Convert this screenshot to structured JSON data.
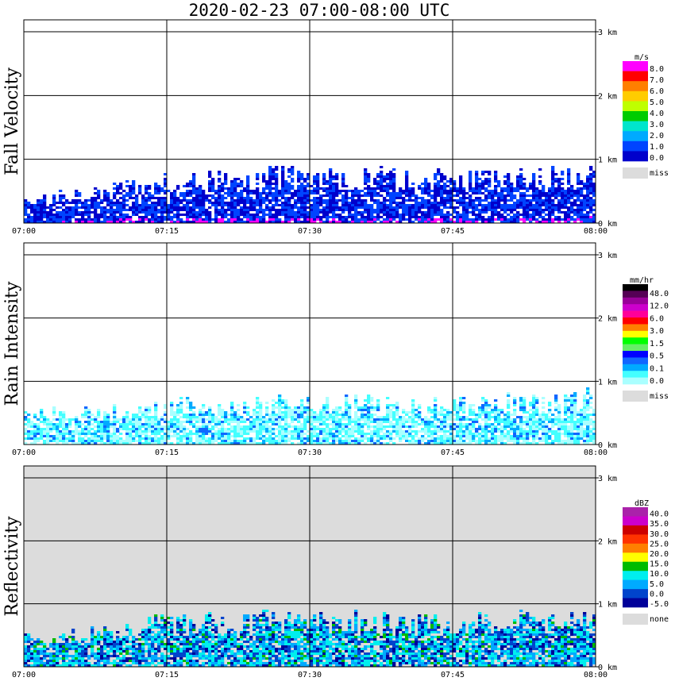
{
  "chart_data": [
    {
      "type": "heatmap",
      "title": "Fall Velocity",
      "units": "m/s",
      "x_ticks": [
        "07:00",
        "07:15",
        "07:30",
        "07:45",
        "08:00"
      ],
      "y_ticks": [
        "0 km",
        "1 km",
        "2 km",
        "3 km"
      ],
      "ylim_km": [
        0,
        3
      ],
      "xlim_min": [
        0,
        60
      ],
      "echo_top_km": [
        0.45,
        0.85,
        0.95,
        0.85,
        1.0
      ],
      "legend": {
        "title": "m/s",
        "labels": [
          "8.0",
          "7.0",
          "6.0",
          "5.0",
          "4.0",
          "3.0",
          "2.0",
          "1.0",
          "0.0"
        ],
        "colors": [
          "#ff00ff",
          "#ff0000",
          "#ff7f00",
          "#ffcc00",
          "#bfff00",
          "#00cc00",
          "#00e5cc",
          "#00aaff",
          "#0044ff",
          "#0000cc"
        ],
        "missing_label": "miss",
        "missing_color": "#dcdcdc"
      },
      "background": "#ffffff"
    },
    {
      "type": "heatmap",
      "title": "Rain Intensity",
      "units": "mm/hr",
      "x_ticks": [
        "07:00",
        "07:15",
        "07:30",
        "07:45",
        "08:00"
      ],
      "y_ticks": [
        "0 km",
        "1 km",
        "2 km",
        "3 km"
      ],
      "ylim_km": [
        0,
        3
      ],
      "xlim_min": [
        0,
        60
      ],
      "echo_top_km": [
        0.6,
        0.75,
        0.85,
        0.8,
        0.95
      ],
      "legend": {
        "title": "mm/hr",
        "labels": [
          "48.0",
          "12.0",
          "6.0",
          "3.0",
          "1.5",
          "0.5",
          "0.1",
          "0.0"
        ],
        "colors": [
          "#000000",
          "#550055",
          "#990099",
          "#cc00cc",
          "#ff0099",
          "#ff0000",
          "#ff7f00",
          "#ffff00",
          "#00ff00",
          "#66ee66",
          "#0000ff",
          "#1166ff",
          "#00aaff",
          "#44ffff",
          "#aaffff"
        ],
        "missing_label": "miss",
        "missing_color": "#dcdcdc"
      },
      "background": "#ffffff"
    },
    {
      "type": "heatmap",
      "title": "Reflectivity",
      "units": "dBZ",
      "x_ticks": [
        "07:00",
        "07:15",
        "07:30",
        "07:45",
        "08:00"
      ],
      "y_ticks": [
        "0 km",
        "1 km",
        "2 km",
        "3 km"
      ],
      "ylim_km": [
        0,
        3
      ],
      "xlim_min": [
        0,
        60
      ],
      "echo_top_km": [
        0.55,
        0.9,
        0.95,
        0.9,
        1.0
      ],
      "legend": {
        "title": "dBZ",
        "labels": [
          "40.0",
          "35.0",
          "30.0",
          "25.0",
          "20.0",
          "15.0",
          "10.0",
          "5.0",
          "0.0",
          "-5.0"
        ],
        "colors": [
          "#aa22aa",
          "#cc00cc",
          "#cc0000",
          "#ff3300",
          "#ff7f00",
          "#ffff00",
          "#00bb00",
          "#00eeee",
          "#00aaff",
          "#0044cc",
          "#000099"
        ],
        "missing_label": "none",
        "missing_color": "#dcdcdc"
      },
      "background": "#dcdcdc"
    }
  ],
  "header": {
    "title": "2020-02-23  07:00-08:00 UTC"
  }
}
